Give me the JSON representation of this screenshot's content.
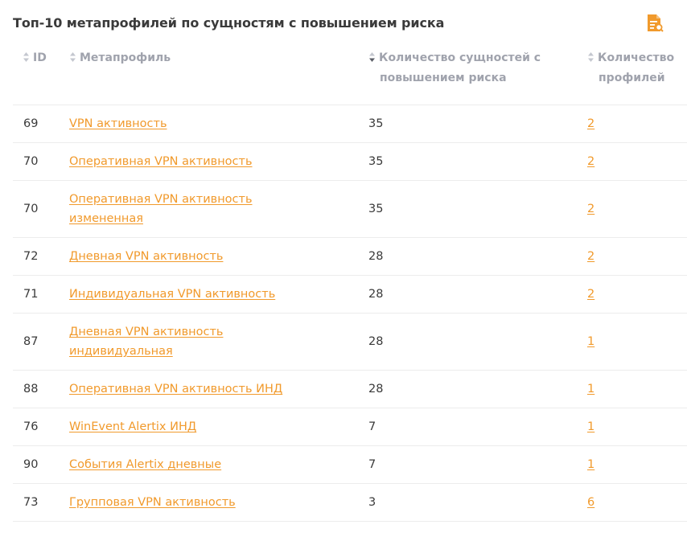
{
  "title": "Топ-10 метапрофилей по сущностям с повышением риска",
  "icons": {
    "export": "export-report-icon",
    "sort": "sort-icon",
    "sort_desc": "sort-desc-icon"
  },
  "colors": {
    "accent": "#f19a2c",
    "header_text": "#a0a3ad"
  },
  "columns": {
    "id": "ID",
    "name": "Метапрофиль",
    "count": "Количество сущностей с повышением риска",
    "profiles": "Количество профилей"
  },
  "rows": [
    {
      "id": "69",
      "name": "VPN активность",
      "count": "35",
      "profiles": "2"
    },
    {
      "id": "70",
      "name": "Оперативная VPN активность",
      "count": "35",
      "profiles": "2"
    },
    {
      "id": "70",
      "name": "Оперативная VPN активность измененная",
      "count": "35",
      "profiles": "2"
    },
    {
      "id": "72",
      "name": "Дневная VPN активность",
      "count": "28",
      "profiles": "2"
    },
    {
      "id": "71",
      "name": "Индивидуальная VPN активность",
      "count": "28",
      "profiles": "2"
    },
    {
      "id": "87",
      "name": "Дневная VPN активность индивидуальная",
      "count": "28",
      "profiles": "1"
    },
    {
      "id": "88",
      "name": "Оперативная VPN активность ИНД",
      "count": "28",
      "profiles": "1"
    },
    {
      "id": "76",
      "name": "WinEvent Alertix ИНД",
      "count": "7",
      "profiles": "1"
    },
    {
      "id": "90",
      "name": "События Alertix дневные",
      "count": "7",
      "profiles": "1"
    },
    {
      "id": "73",
      "name": "Групповая VPN активность",
      "count": "3",
      "profiles": "6"
    }
  ]
}
